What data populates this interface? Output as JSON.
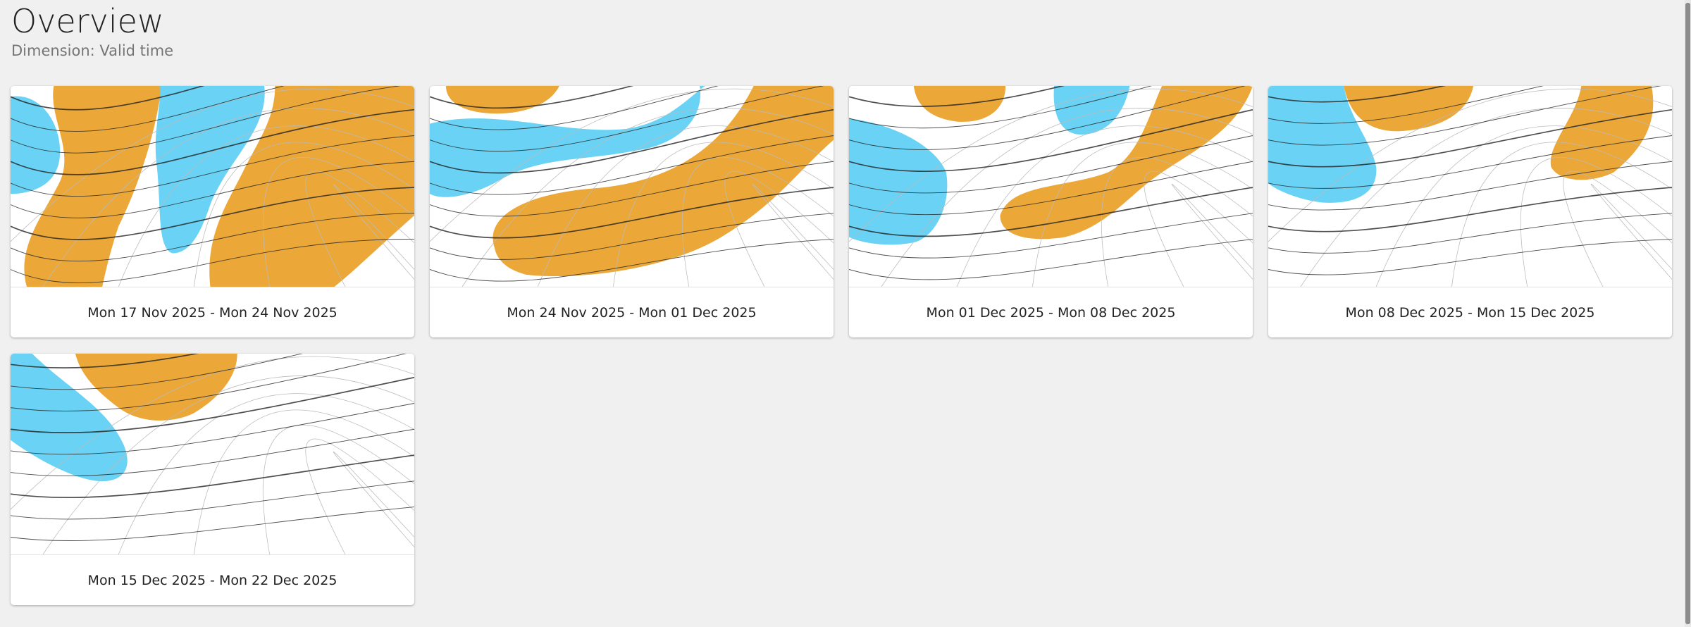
{
  "page": {
    "title": "Overview",
    "subtitle": "Dimension: Valid time"
  },
  "colors": {
    "positive_anomaly": "#eaa22c",
    "positive_anomaly_strong": "#e9822a",
    "negative_anomaly": "#62d0f3",
    "negative_anomaly_strong": "#3f97e6",
    "contour": "#222222"
  },
  "cards": [
    {
      "caption": "Mon 17 Nov 2025 - Mon 24 Nov 2025",
      "icon": "forecast-map"
    },
    {
      "caption": "Mon 24 Nov 2025 - Mon 01 Dec 2025",
      "icon": "forecast-map"
    },
    {
      "caption": "Mon 01 Dec 2025 - Mon 08 Dec 2025",
      "icon": "forecast-map"
    },
    {
      "caption": "Mon 08 Dec 2025 - Mon 15 Dec 2025",
      "icon": "forecast-map"
    },
    {
      "caption": "Mon 15 Dec 2025 - Mon 22 Dec 2025",
      "icon": "forecast-map"
    }
  ]
}
